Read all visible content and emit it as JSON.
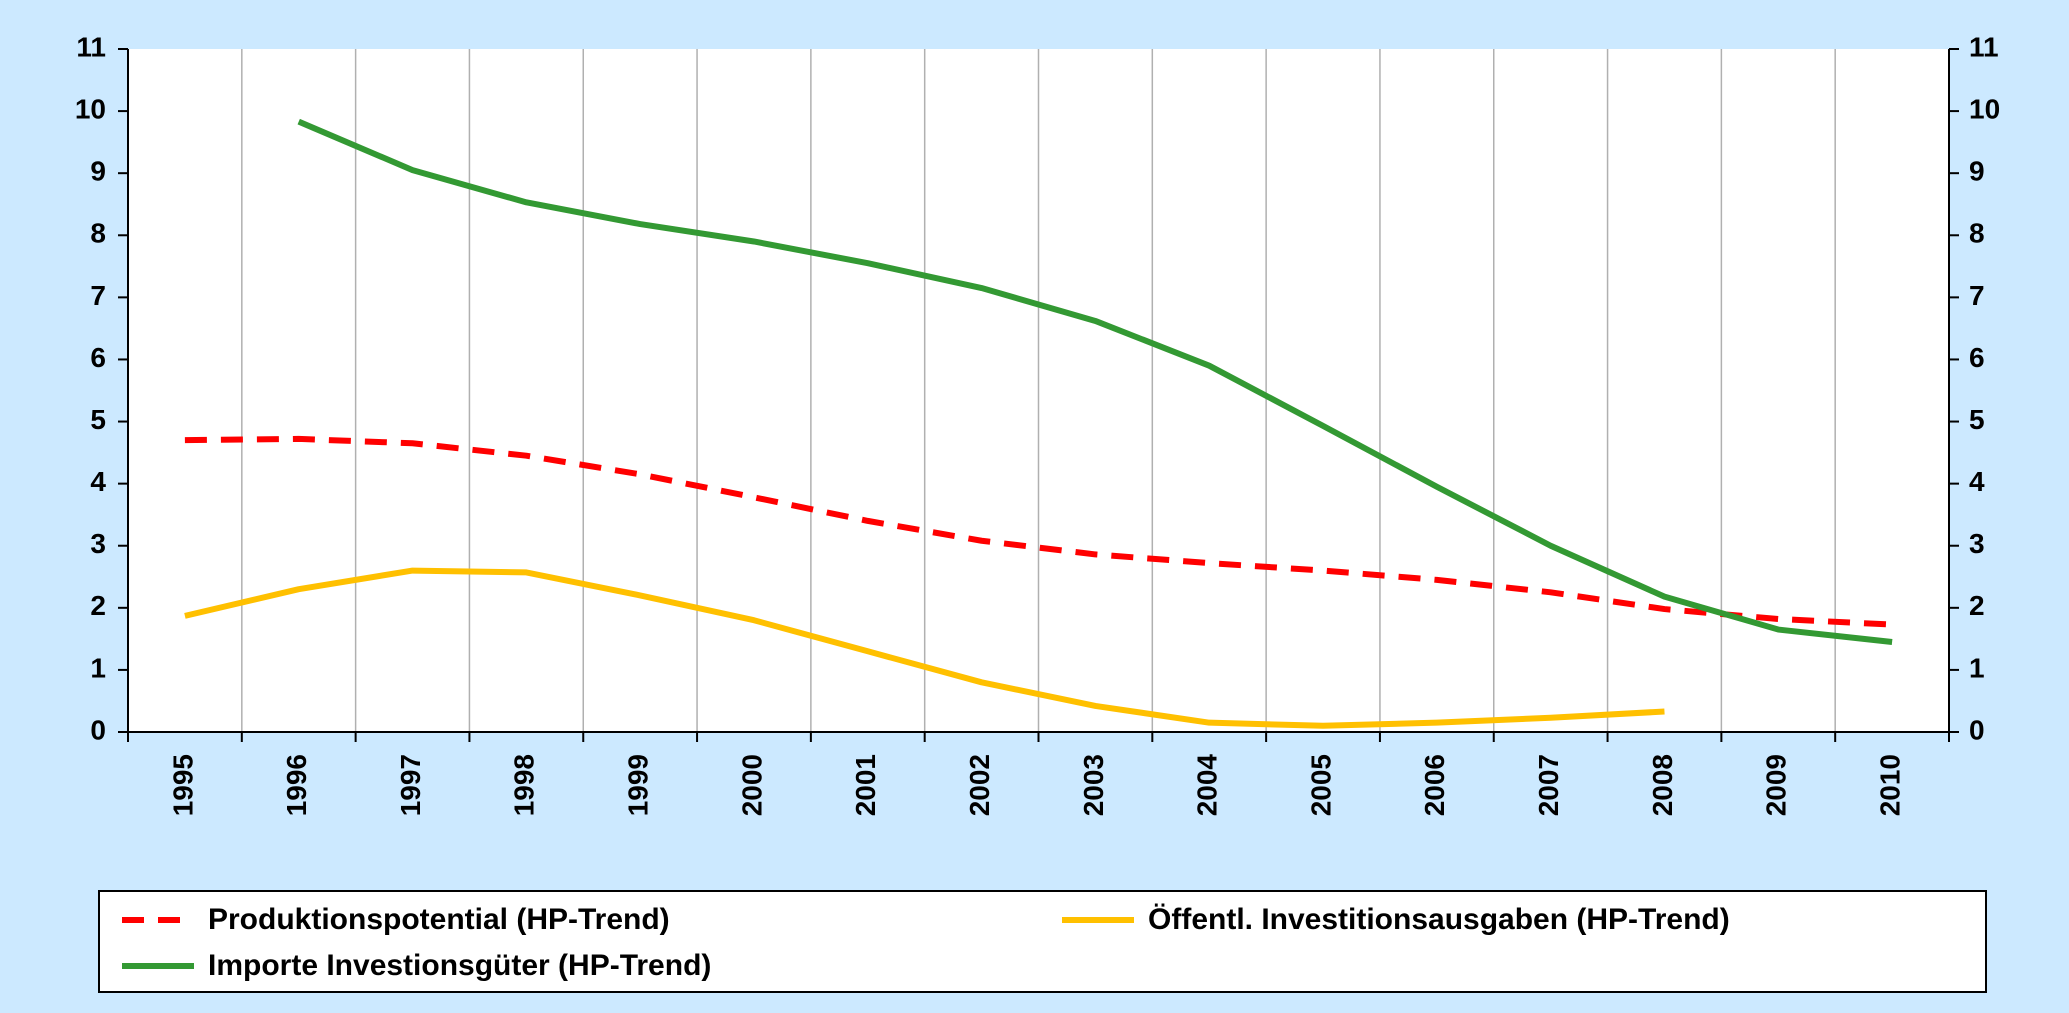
{
  "chart_data": {
    "type": "line",
    "categories": [
      "1995",
      "1996",
      "1997",
      "1998",
      "1999",
      "2000",
      "2001",
      "2002",
      "2003",
      "2004",
      "2005",
      "2006",
      "2007",
      "2008",
      "2009",
      "2010"
    ],
    "series": [
      {
        "name": "Produktionspotential (HP-Trend)",
        "color": "#ff0000",
        "dash": true,
        "values": [
          4.7,
          4.72,
          4.65,
          4.45,
          4.15,
          3.78,
          3.4,
          3.08,
          2.86,
          2.72,
          2.6,
          2.45,
          2.25,
          1.98,
          1.82,
          1.73
        ]
      },
      {
        "name": "Öffentl. Investitionsausgaben (HP-Trend)",
        "color": "#ffc000",
        "dash": false,
        "values": [
          1.87,
          2.3,
          2.6,
          2.57,
          2.2,
          1.8,
          1.3,
          0.8,
          0.42,
          0.15,
          0.1,
          0.15,
          0.23,
          0.33,
          null,
          null
        ]
      },
      {
        "name": "Importe Investionsgüter (HP-Trend)",
        "color": "#339933",
        "dash": false,
        "values": [
          null,
          9.83,
          9.05,
          8.53,
          8.18,
          7.9,
          7.55,
          7.15,
          6.62,
          5.9,
          4.93,
          3.95,
          3.0,
          2.18,
          1.65,
          1.45
        ]
      }
    ],
    "ylim": [
      0,
      11
    ],
    "yticks": [
      0,
      1,
      2,
      3,
      4,
      5,
      6,
      7,
      8,
      9,
      10,
      11
    ],
    "y2lim": [
      0,
      11
    ],
    "y2ticks": [
      0,
      1,
      2,
      3,
      4,
      5,
      6,
      7,
      8,
      9,
      10,
      11
    ],
    "grid": true,
    "legend": "bottom"
  }
}
